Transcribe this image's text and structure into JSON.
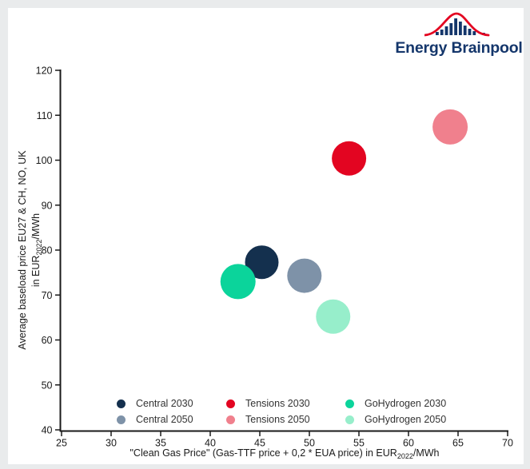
{
  "page": {
    "background_color": "#e9ebec",
    "panel_color": "#ffffff",
    "axis_color": "#1a1a1a"
  },
  "logo": {
    "text": "Energy Brainpool",
    "text_color": "#14366b",
    "bar_color": "#14366b",
    "curve_color": "#e30521",
    "icon": "histogram-with-bell-curve"
  },
  "chart_data": {
    "type": "scatter",
    "title": "",
    "x_axis": {
      "label_main": "\"Clean Gas Price\" (Gas-TTF price + 0,2 * EUA price) in EUR",
      "label_subscript": "2022",
      "label_after": "/MWh",
      "min": 25,
      "max": 70,
      "ticks": [
        25,
        30,
        35,
        40,
        45,
        50,
        55,
        60,
        65,
        70
      ]
    },
    "y_axis": {
      "label_line1": "Average baseload price EU27 & CH, NO, UK",
      "label_line2_main": "in EUR",
      "label_subscript": "2022",
      "label_after": "/MWh",
      "min": 40,
      "max": 120,
      "ticks": [
        40,
        50,
        60,
        70,
        80,
        90,
        100,
        110,
        120
      ]
    },
    "grid": false,
    "legend_position": "bottom-inside",
    "series": [
      {
        "name": "Central 2030",
        "color": "#14304e",
        "x": 45.2,
        "y": 77.3,
        "bubble_radius_px": 21
      },
      {
        "name": "Central 2050",
        "color": "#7e92a8",
        "x": 49.5,
        "y": 74.3,
        "bubble_radius_px": 21.5
      },
      {
        "name": "Tensions 2030",
        "color": "#e30521",
        "x": 54.0,
        "y": 100.4,
        "bubble_radius_px": 21.5
      },
      {
        "name": "Tensions 2050",
        "color": "#f0808d",
        "x": 64.2,
        "y": 107.4,
        "bubble_radius_px": 22
      },
      {
        "name": "GoHydrogen 2030",
        "color": "#0bd49b",
        "x": 42.8,
        "y": 73.0,
        "bubble_radius_px": 22
      },
      {
        "name": "GoHydrogen 2050",
        "color": "#97eecb",
        "x": 52.4,
        "y": 65.2,
        "bubble_radius_px": 21.5
      }
    ],
    "legend_columns": [
      [
        "Central 2030",
        "Central 2050"
      ],
      [
        "Tensions 2030",
        "Tensions 2050"
      ],
      [
        "GoHydrogen 2030",
        "GoHydrogen 2050"
      ]
    ]
  }
}
